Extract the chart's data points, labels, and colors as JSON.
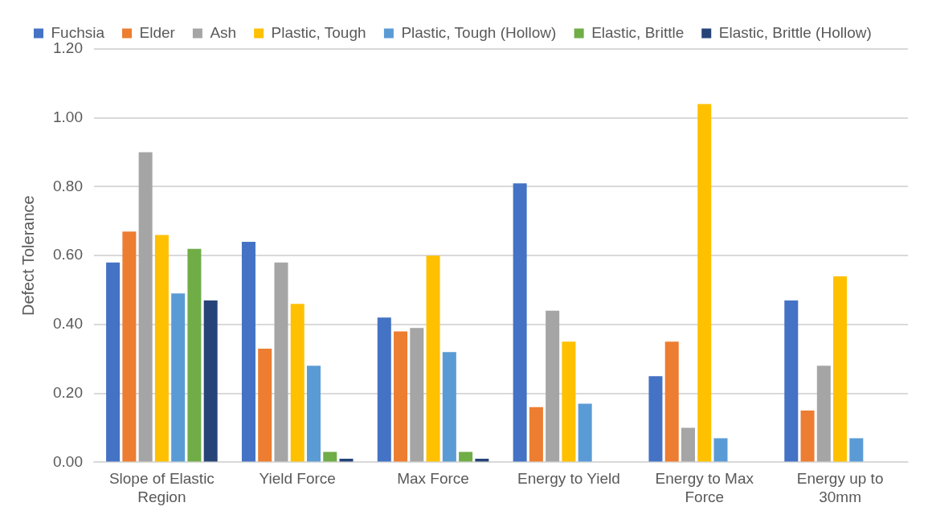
{
  "chart_data": {
    "type": "bar",
    "ylabel": "Defect Tolerance",
    "categories": [
      "Slope of Elastic Region",
      "Yield Force",
      "Max Force",
      "Energy to Yield",
      "Energy to Max Force",
      "Energy up to 30mm"
    ],
    "series": [
      {
        "name": "Fuchsia",
        "color": "#4472c4",
        "values": [
          0.58,
          0.64,
          0.42,
          0.81,
          0.25,
          0.47
        ]
      },
      {
        "name": "Elder",
        "color": "#ed7d31",
        "values": [
          0.67,
          0.33,
          0.38,
          0.16,
          0.35,
          0.15
        ]
      },
      {
        "name": "Ash",
        "color": "#a5a5a5",
        "values": [
          0.9,
          0.58,
          0.39,
          0.44,
          0.1,
          0.28
        ]
      },
      {
        "name": "Plastic, Tough",
        "color": "#ffc000",
        "values": [
          0.66,
          0.46,
          0.6,
          0.35,
          1.04,
          0.54
        ]
      },
      {
        "name": "Plastic, Tough (Hollow)",
        "color": "#5b9bd5",
        "values": [
          0.49,
          0.28,
          0.32,
          0.17,
          0.07,
          0.07
        ]
      },
      {
        "name": "Elastic, Brittle",
        "color": "#70ad47",
        "values": [
          0.62,
          0.03,
          0.03,
          null,
          null,
          null
        ]
      },
      {
        "name": "Elastic, Brittle (Hollow)",
        "color": "#264478",
        "values": [
          0.47,
          0.01,
          0.01,
          null,
          null,
          null
        ]
      }
    ],
    "ylim": [
      0,
      1.2
    ],
    "yticks": [
      {
        "value": 0,
        "label": "0.00"
      },
      {
        "value": 0.2,
        "label": "0.20"
      },
      {
        "value": 0.4,
        "label": "0.40"
      },
      {
        "value": 0.6,
        "label": "0.60"
      },
      {
        "value": 0.8,
        "label": "0.80"
      },
      {
        "value": 1.0,
        "label": "1.00"
      },
      {
        "value": 1.2,
        "label": "1.20"
      }
    ],
    "grid": "y",
    "legend": "top"
  }
}
